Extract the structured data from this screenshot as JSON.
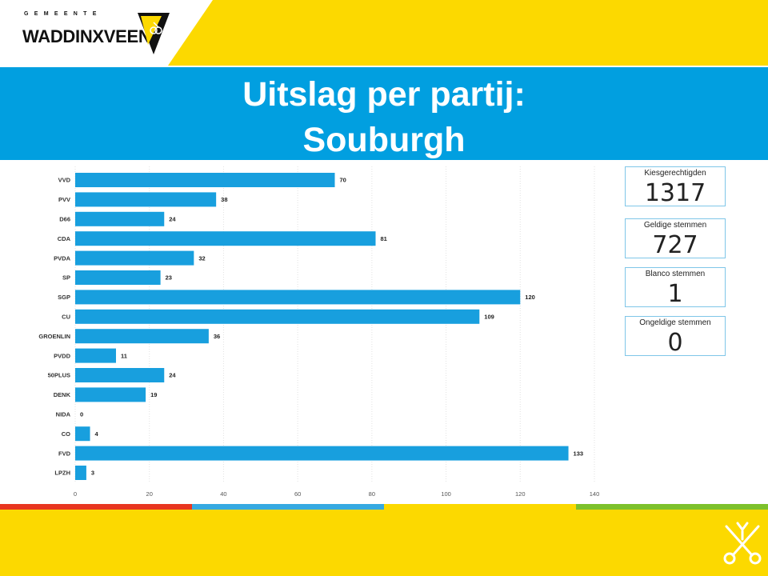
{
  "logo": {
    "municipality_label": "GEMEENTE",
    "name": "WADDINXVEEN"
  },
  "header": {
    "title_line1": "Uitslag per partij:",
    "title_line2": "Souburgh"
  },
  "colors": {
    "accent_blue": "#019fe0",
    "bar": "#189fde",
    "yellow": "#fcd900",
    "strip": [
      "#e8361f",
      "#36a9e1",
      "#fcd900",
      "#7dc12c"
    ]
  },
  "stats": [
    {
      "label": "Kiesgerechtigden",
      "value": "1317"
    },
    {
      "label": "Geldige stemmen",
      "value": "727"
    },
    {
      "label": "Blanco stemmen",
      "value": "1"
    },
    {
      "label": "Ongeldige stemmen",
      "value": "0"
    }
  ],
  "chart_data": {
    "type": "bar",
    "orientation": "horizontal",
    "categories": [
      "VVD",
      "PVV",
      "D66",
      "CDA",
      "PVDA",
      "SP",
      "SGP",
      "CU",
      "GROENLIN",
      "PVDD",
      "50PLUS",
      "DENK",
      "NIDA",
      "CO",
      "FVD",
      "LPZH"
    ],
    "values": [
      70,
      38,
      24,
      81,
      32,
      23,
      120,
      109,
      36,
      11,
      24,
      19,
      0,
      4,
      133,
      3
    ],
    "xlim": [
      0,
      140
    ],
    "xticks": [
      0,
      20,
      40,
      60,
      80,
      100,
      120,
      140
    ],
    "grid": true,
    "data_labels": true,
    "title": "",
    "xlabel": "",
    "ylabel": ""
  }
}
